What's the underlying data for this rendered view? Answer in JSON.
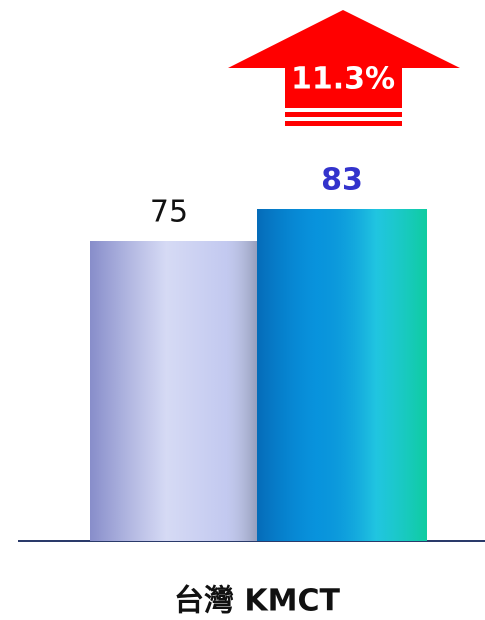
{
  "chart_data": {
    "type": "bar",
    "categories": [
      "台灣 KMCT"
    ],
    "series": [
      {
        "color": "#b4bcec",
        "values": [
          75
        ]
      },
      {
        "color": "#0a9ce0",
        "values": [
          83
        ]
      }
    ],
    "annotation": "11.3%",
    "ylim": [
      0,
      100
    ]
  }
}
